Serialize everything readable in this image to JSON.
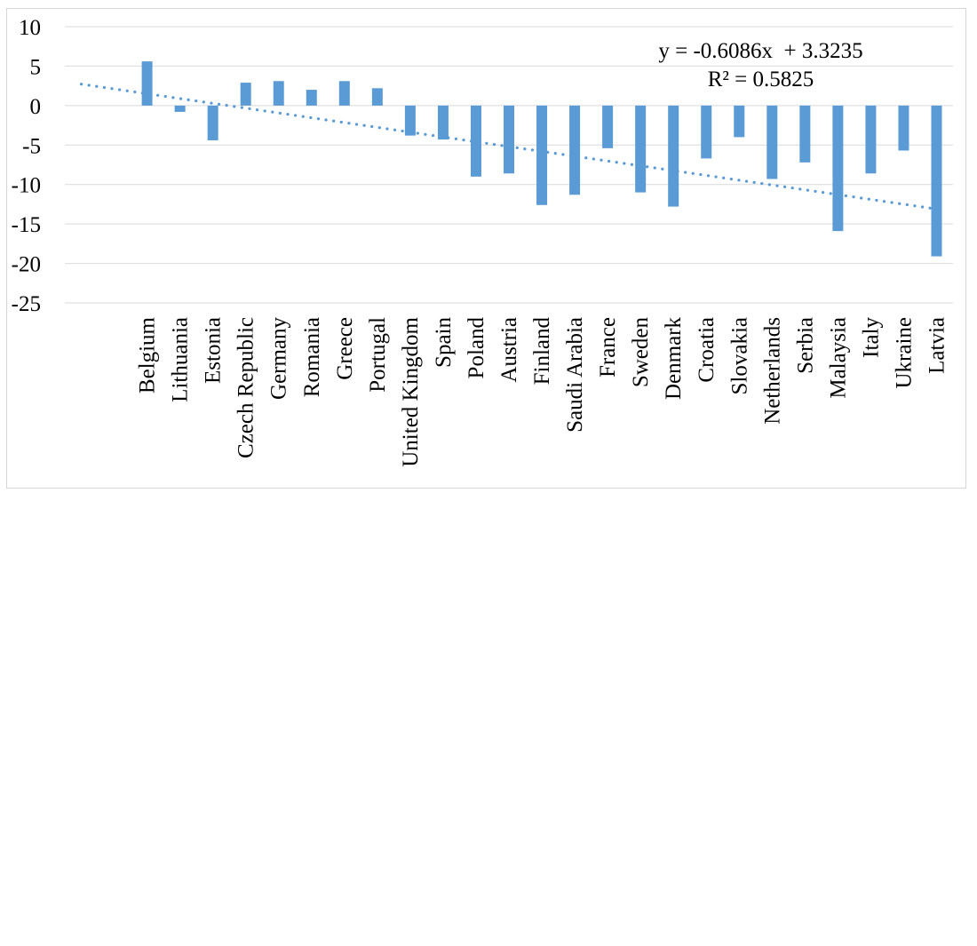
{
  "page": {
    "background_color": "#ffffff",
    "frame_border_color": "#d6d6d6"
  },
  "chart_data": {
    "type": "bar",
    "title": "",
    "xlabel": "",
    "ylabel": "",
    "categories": [
      "Belgium",
      "Lithuania",
      "Estonia",
      "Czech Republic",
      "Germany",
      "Romania",
      "Greece",
      "Portugal",
      "United Kingdom",
      "Spain",
      "Poland",
      "Austria",
      "Finland",
      "Saudi Arabia",
      "France",
      "Sweden",
      "Denmark",
      "Croatia",
      "Slovakia",
      "Netherlands",
      "Serbia",
      "Malaysia",
      "Italy",
      "Ukraine",
      "Latvia"
    ],
    "values": [
      5.6,
      -0.8,
      -4.4,
      2.9,
      3.1,
      2.0,
      3.1,
      2.2,
      -3.8,
      -4.3,
      -9.0,
      -8.6,
      -12.6,
      -11.3,
      -5.4,
      -11.0,
      -12.8,
      -6.7,
      -4.0,
      -9.3,
      -7.2,
      -15.9,
      -8.6,
      -5.7,
      -19.1
    ],
    "y_ticks": [
      10,
      5,
      0,
      -5,
      -10,
      -15,
      -20,
      -25
    ],
    "ylim": [
      -27.5,
      11.5
    ],
    "grid": "horizontal",
    "legend_position": "none",
    "bar_color": "#5b9bd5",
    "gridline_color": "#d9d9d9",
    "axis_text_color": "#000000",
    "trendline": {
      "equation_label": "y = -0.6086x  + 3.3235",
      "r2_label": "R² = 0.5825",
      "slope": -0.6086,
      "intercept": 3.3235,
      "x_start": 1,
      "x_end": 27,
      "leading_empty_categories": 2,
      "color": "#5b9bd5",
      "style": "dotted"
    }
  }
}
